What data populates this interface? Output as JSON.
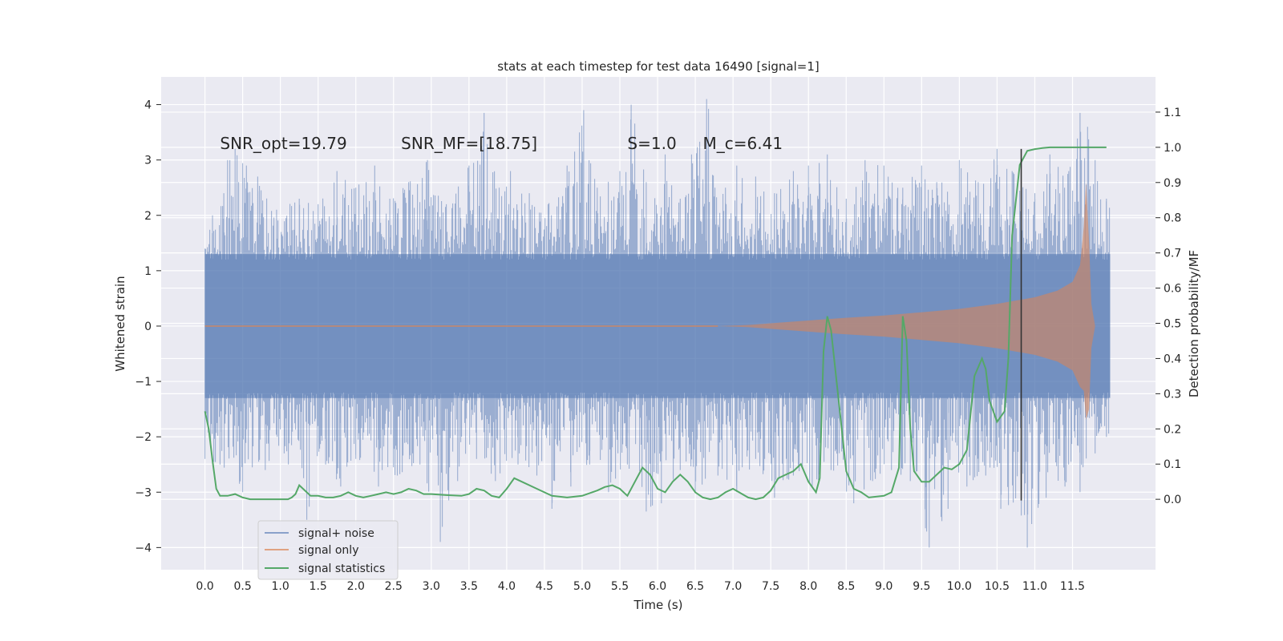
{
  "chart_data": {
    "type": "line",
    "title": "stats at each timestep for test data 16490 [signal=1]",
    "xlabel": "Time (s)",
    "ylabel": "Whitened strain",
    "ylabel_right": "Detection probability/MF",
    "xlim": [
      -0.58,
      12.6
    ],
    "ylim": [
      -4.4,
      4.5
    ],
    "ylim_right": [
      -0.2,
      1.2
    ],
    "x_ticks": [
      "0.0",
      "0.5",
      "1.0",
      "1.5",
      "2.0",
      "2.5",
      "3.0",
      "3.5",
      "4.0",
      "4.5",
      "5.0",
      "5.5",
      "6.0",
      "6.5",
      "7.0",
      "7.5",
      "8.0",
      "8.5",
      "9.0",
      "9.5",
      "10.0",
      "10.5",
      "11.0",
      "11.5"
    ],
    "y_ticks": [
      "−4",
      "−3",
      "−2",
      "−1",
      "0",
      "1",
      "2",
      "3",
      "4"
    ],
    "y_ticks_right": [
      "0.0",
      "0.1",
      "0.2",
      "0.3",
      "0.4",
      "0.5",
      "0.6",
      "0.7",
      "0.8",
      "0.9",
      "1.0",
      "1.1"
    ],
    "grid": true,
    "legend_position": "bottom-left",
    "annotations": [
      {
        "x": 0.2,
        "y": 3.3,
        "text": "SNR_opt=19.79"
      },
      {
        "x": 2.6,
        "y": 3.3,
        "text": "SNR_MF=[18.75]"
      },
      {
        "x": 5.6,
        "y": 3.3,
        "text": "S=1.0"
      },
      {
        "x": 6.6,
        "y": 3.3,
        "text": "M_c=6.41"
      }
    ],
    "vertical_line": {
      "x": 10.82,
      "y_range": [
        -3.15,
        3.2
      ],
      "color": "#333333"
    },
    "series": [
      {
        "name": "signal+ noise",
        "color": "#4c72b0",
        "alpha": 0.5,
        "kind": "noise-band",
        "x_range": [
          0.0,
          12.0
        ],
        "band": [
          -1.3,
          1.3
        ],
        "peaks": [
          [
            0.0,
            1.4
          ],
          [
            0.1,
            2.0
          ],
          [
            0.25,
            2.4
          ],
          [
            0.3,
            3.0
          ],
          [
            0.4,
            3.2
          ],
          [
            0.55,
            2.9
          ],
          [
            0.7,
            2.7
          ],
          [
            0.95,
            2.1
          ],
          [
            1.25,
            2.3
          ],
          [
            1.5,
            2.2
          ],
          [
            1.75,
            2.8
          ],
          [
            2.0,
            2.5
          ],
          [
            2.25,
            2.9
          ],
          [
            2.45,
            2.3
          ],
          [
            2.7,
            2.6
          ],
          [
            2.95,
            3.0
          ],
          [
            3.2,
            2.2
          ],
          [
            3.5,
            2.9
          ],
          [
            3.7,
            3.85
          ],
          [
            3.9,
            2.5
          ],
          [
            4.05,
            2.8
          ],
          [
            4.3,
            2.4
          ],
          [
            4.55,
            2.2
          ],
          [
            4.8,
            2.9
          ],
          [
            5.02,
            3.9
          ],
          [
            5.2,
            2.5
          ],
          [
            5.5,
            2.8
          ],
          [
            5.65,
            4.0
          ],
          [
            5.85,
            2.6
          ],
          [
            6.1,
            3.1
          ],
          [
            6.3,
            2.3
          ],
          [
            6.45,
            3.1
          ],
          [
            6.65,
            4.1
          ],
          [
            6.9,
            2.5
          ],
          [
            7.05,
            2.9
          ],
          [
            7.3,
            2.7
          ],
          [
            7.55,
            2.4
          ],
          [
            7.8,
            2.8
          ],
          [
            8.0,
            2.9
          ],
          [
            8.25,
            3.1
          ],
          [
            8.5,
            2.3
          ],
          [
            8.75,
            3.0
          ],
          [
            9.0,
            2.9
          ],
          [
            9.25,
            2.5
          ],
          [
            9.5,
            2.9
          ],
          [
            9.7,
            2.6
          ],
          [
            10.0,
            3.0
          ],
          [
            10.25,
            2.6
          ],
          [
            10.5,
            3.2
          ],
          [
            10.7,
            2.8
          ],
          [
            11.0,
            2.4
          ],
          [
            11.2,
            3.1
          ],
          [
            11.45,
            2.8
          ],
          [
            11.6,
            3.85
          ],
          [
            11.7,
            3.6
          ],
          [
            11.8,
            3.0
          ],
          [
            11.95,
            2.3
          ]
        ],
        "troughs": [
          [
            0.0,
            -2.4
          ],
          [
            0.2,
            -2.5
          ],
          [
            0.5,
            -3.0
          ],
          [
            0.8,
            -2.6
          ],
          [
            1.05,
            -2.3
          ],
          [
            1.35,
            -3.5
          ],
          [
            1.6,
            -2.5
          ],
          [
            1.8,
            -2.9
          ],
          [
            2.0,
            -2.4
          ],
          [
            2.3,
            -2.9
          ],
          [
            2.55,
            -2.7
          ],
          [
            2.85,
            -2.5
          ],
          [
            3.12,
            -3.9
          ],
          [
            3.35,
            -2.8
          ],
          [
            3.6,
            -2.4
          ],
          [
            3.85,
            -2.8
          ],
          [
            4.15,
            -2.5
          ],
          [
            4.4,
            -2.7
          ],
          [
            4.6,
            -3.3
          ],
          [
            4.85,
            -2.9
          ],
          [
            5.1,
            -2.5
          ],
          [
            5.35,
            -3.0
          ],
          [
            5.6,
            -2.5
          ],
          [
            5.85,
            -3.35
          ],
          [
            6.05,
            -3.2
          ],
          [
            6.3,
            -2.6
          ],
          [
            6.5,
            -3.0
          ],
          [
            6.8,
            -2.7
          ],
          [
            7.05,
            -3.0
          ],
          [
            7.3,
            -2.4
          ],
          [
            7.55,
            -3.1
          ],
          [
            7.8,
            -2.7
          ],
          [
            8.05,
            -2.9
          ],
          [
            8.3,
            -2.6
          ],
          [
            8.6,
            -3.2
          ],
          [
            8.85,
            -2.8
          ],
          [
            9.1,
            -2.6
          ],
          [
            9.35,
            -2.8
          ],
          [
            9.55,
            -3.65
          ],
          [
            9.6,
            -4.0
          ],
          [
            9.85,
            -3.3
          ],
          [
            10.1,
            -2.9
          ],
          [
            10.35,
            -2.7
          ],
          [
            10.55,
            -3.3
          ],
          [
            10.9,
            -4.0
          ],
          [
            11.15,
            -3.1
          ],
          [
            11.4,
            -2.9
          ],
          [
            11.6,
            -3.0
          ],
          [
            11.8,
            -2.3
          ],
          [
            11.95,
            -2.0
          ]
        ]
      },
      {
        "name": "signal only",
        "color": "#dd8452",
        "alpha": 0.55,
        "kind": "chirp-envelope",
        "envelope": [
          [
            6.8,
            0.0
          ],
          [
            7.2,
            0.02
          ],
          [
            7.6,
            0.06
          ],
          [
            8.0,
            0.1
          ],
          [
            8.5,
            0.15
          ],
          [
            9.0,
            0.19
          ],
          [
            9.5,
            0.25
          ],
          [
            10.0,
            0.31
          ],
          [
            10.5,
            0.4
          ],
          [
            11.0,
            0.52
          ],
          [
            11.3,
            0.64
          ],
          [
            11.5,
            0.8
          ],
          [
            11.6,
            1.1
          ],
          [
            11.65,
            1.8
          ],
          [
            11.68,
            2.6
          ],
          [
            11.72,
            1.5
          ],
          [
            11.75,
            0.4
          ],
          [
            11.8,
            0.0
          ],
          [
            12.0,
            0.0
          ]
        ]
      },
      {
        "name": "signal statistics",
        "color": "#55a868",
        "kind": "line",
        "axis": "right",
        "x": [
          0.0,
          0.05,
          0.1,
          0.15,
          0.2,
          0.25,
          0.3,
          0.4,
          0.5,
          0.6,
          0.7,
          0.8,
          0.9,
          1.0,
          1.1,
          1.15,
          1.2,
          1.25,
          1.3,
          1.4,
          1.5,
          1.6,
          1.7,
          1.8,
          1.9,
          2.0,
          2.1,
          2.2,
          2.3,
          2.4,
          2.5,
          2.6,
          2.7,
          2.8,
          2.9,
          3.0,
          3.2,
          3.4,
          3.5,
          3.6,
          3.7,
          3.8,
          3.9,
          4.0,
          4.1,
          4.2,
          4.4,
          4.6,
          4.8,
          5.0,
          5.2,
          5.3,
          5.4,
          5.5,
          5.6,
          5.7,
          5.8,
          5.9,
          6.0,
          6.1,
          6.2,
          6.3,
          6.4,
          6.5,
          6.6,
          6.7,
          6.8,
          6.9,
          7.0,
          7.2,
          7.3,
          7.4,
          7.5,
          7.6,
          7.7,
          7.8,
          7.9,
          8.0,
          8.1,
          8.15,
          8.2,
          8.25,
          8.3,
          8.4,
          8.5,
          8.6,
          8.7,
          8.8,
          9.0,
          9.1,
          9.2,
          9.25,
          9.3,
          9.35,
          9.4,
          9.5,
          9.6,
          9.7,
          9.8,
          9.9,
          10.0,
          10.1,
          10.2,
          10.3,
          10.35,
          10.4,
          10.5,
          10.6,
          10.65,
          10.7,
          10.8,
          10.9,
          11.0,
          11.1,
          11.2,
          11.4,
          11.6,
          11.8,
          11.95
        ],
        "values": [
          0.25,
          0.2,
          0.11,
          0.03,
          0.01,
          0.01,
          0.01,
          0.015,
          0.005,
          0.0,
          0.0,
          0.0,
          0.0,
          0.0,
          0.0,
          0.005,
          0.015,
          0.04,
          0.03,
          0.01,
          0.01,
          0.005,
          0.005,
          0.01,
          0.02,
          0.01,
          0.005,
          0.01,
          0.015,
          0.02,
          0.015,
          0.02,
          0.03,
          0.025,
          0.015,
          0.015,
          0.012,
          0.01,
          0.015,
          0.03,
          0.025,
          0.01,
          0.005,
          0.03,
          0.06,
          0.05,
          0.03,
          0.01,
          0.005,
          0.01,
          0.025,
          0.035,
          0.04,
          0.03,
          0.01,
          0.05,
          0.09,
          0.07,
          0.03,
          0.02,
          0.05,
          0.07,
          0.05,
          0.02,
          0.005,
          0.0,
          0.005,
          0.02,
          0.03,
          0.005,
          0.0,
          0.005,
          0.025,
          0.06,
          0.07,
          0.08,
          0.1,
          0.05,
          0.02,
          0.06,
          0.42,
          0.52,
          0.48,
          0.28,
          0.08,
          0.03,
          0.02,
          0.005,
          0.01,
          0.02,
          0.09,
          0.52,
          0.45,
          0.2,
          0.08,
          0.05,
          0.05,
          0.07,
          0.09,
          0.085,
          0.1,
          0.14,
          0.35,
          0.4,
          0.37,
          0.28,
          0.22,
          0.25,
          0.4,
          0.75,
          0.95,
          0.99,
          0.995,
          0.998,
          1.0,
          1.0,
          1.0,
          1.0,
          1.0
        ]
      }
    ]
  }
}
